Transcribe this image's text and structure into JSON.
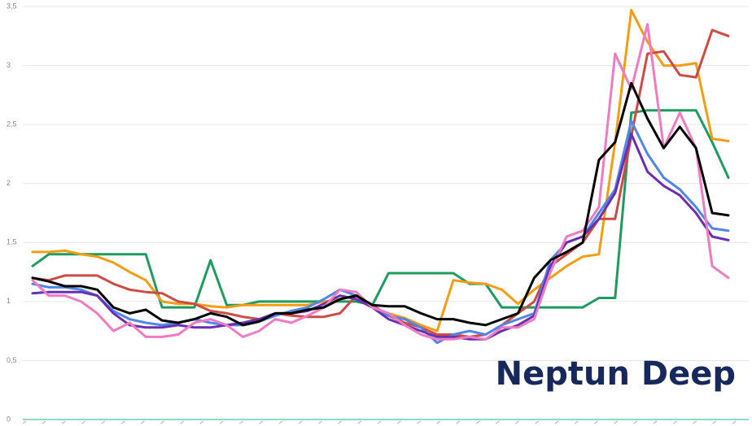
{
  "chart_data": {
    "type": "line",
    "watermark": "Neptun Deep",
    "categories": [
      null,
      null,
      null,
      null,
      null,
      null,
      null,
      null,
      null,
      null,
      null,
      null,
      null,
      null,
      null,
      null,
      null,
      null,
      null,
      null,
      null,
      null,
      null,
      null,
      null,
      null,
      null,
      null,
      null,
      null,
      null,
      null,
      null,
      null,
      null,
      null,
      null,
      null,
      null,
      null,
      null,
      null,
      null,
      null
    ],
    "ylim": [
      0,
      3.5
    ],
    "yticks": [
      0,
      {
        "value": 0.5,
        "label": "0,5"
      },
      1,
      {
        "value": 1.5,
        "label": "1,5"
      },
      2,
      {
        "value": 2.5,
        "label": "2,5"
      },
      3,
      {
        "value": 3.5,
        "label": "3,5"
      }
    ],
    "grid": true,
    "series": [
      {
        "color": "#1e9b5e",
        "values": [
          1.3,
          1.4,
          1.4,
          1.4,
          1.4,
          1.4,
          1.4,
          1.4,
          0.95,
          0.95,
          0.95,
          1.35,
          0.97,
          0.97,
          1.0,
          1,
          1,
          1,
          1,
          1,
          1,
          0.97,
          1.24,
          1.24,
          1.24,
          1.24,
          1.24,
          1.15,
          1.15,
          0.95,
          0.95,
          0.95,
          0.95,
          0.95,
          0.95,
          1.03,
          1.03,
          2.6,
          2.62,
          2.62,
          2.62,
          2.62,
          2.35,
          2.05
        ]
      },
      {
        "color": "#f29d14",
        "values": [
          1.42,
          1.42,
          1.43,
          1.4,
          1.38,
          1.33,
          1.25,
          1.18,
          1.0,
          0.98,
          0.98,
          0.96,
          0.95,
          0.97,
          0.97,
          0.97,
          0.97,
          0.97,
          1.0,
          1.02,
          1.05,
          0.95,
          0.9,
          0.86,
          0.8,
          0.75,
          1.18,
          1.16,
          1.15,
          1.1,
          0.98,
          1.1,
          1.2,
          1.3,
          1.38,
          1.4,
          2.35,
          3.47,
          3.2,
          3.0,
          3.0,
          3.02,
          2.38,
          2.36
        ]
      },
      {
        "color": "#cc4b45",
        "values": [
          1.2,
          1.18,
          1.22,
          1.22,
          1.22,
          1.15,
          1.1,
          1.08,
          1.07,
          1.0,
          0.98,
          0.92,
          0.9,
          0.87,
          0.85,
          0.9,
          0.88,
          0.87,
          0.87,
          0.9,
          1.05,
          0.97,
          0.88,
          0.82,
          0.78,
          0.72,
          0.72,
          0.7,
          0.72,
          0.8,
          0.9,
          1.0,
          1.3,
          1.4,
          1.5,
          1.7,
          1.7,
          2.4,
          3.1,
          3.12,
          2.92,
          2.9,
          3.3,
          3.25
        ]
      },
      {
        "color": "#4f86e8",
        "values": [
          1.15,
          1.12,
          1.12,
          1.1,
          1.05,
          0.92,
          0.85,
          0.82,
          0.8,
          0.82,
          0.85,
          0.82,
          0.8,
          0.8,
          0.83,
          0.88,
          0.92,
          0.95,
          1.02,
          1.1,
          1.05,
          0.95,
          0.88,
          0.85,
          0.78,
          0.65,
          0.72,
          0.75,
          0.72,
          0.8,
          0.85,
          0.9,
          1.35,
          1.5,
          1.55,
          1.75,
          1.95,
          2.53,
          2.25,
          2.05,
          1.95,
          1.8,
          1.62,
          1.6
        ]
      },
      {
        "color": "#6a2fb0",
        "values": [
          1.07,
          1.08,
          1.08,
          1.08,
          1.05,
          0.9,
          0.8,
          0.78,
          0.78,
          0.8,
          0.78,
          0.78,
          0.8,
          0.82,
          0.85,
          0.9,
          0.9,
          0.92,
          0.98,
          1.05,
          1.02,
          0.95,
          0.85,
          0.8,
          0.75,
          0.7,
          0.7,
          0.68,
          0.68,
          0.75,
          0.8,
          0.88,
          1.3,
          1.5,
          1.55,
          1.7,
          1.92,
          2.42,
          2.1,
          1.98,
          1.9,
          1.75,
          1.55,
          1.52
        ]
      },
      {
        "color": "#ef7bc3",
        "values": [
          1.18,
          1.05,
          1.05,
          1.0,
          0.9,
          0.75,
          0.82,
          0.7,
          0.7,
          0.72,
          0.82,
          0.85,
          0.8,
          0.7,
          0.75,
          0.85,
          0.82,
          0.88,
          0.95,
          1.1,
          1.08,
          0.95,
          0.9,
          0.8,
          0.72,
          0.68,
          0.68,
          0.7,
          0.68,
          0.78,
          0.78,
          0.85,
          1.25,
          1.55,
          1.6,
          1.8,
          3.1,
          2.8,
          3.35,
          2.3,
          2.6,
          2.3,
          1.3,
          1.2
        ]
      },
      {
        "color": "#000000",
        "values": [
          1.2,
          1.17,
          1.13,
          1.13,
          1.1,
          0.95,
          0.9,
          0.93,
          0.84,
          0.82,
          0.85,
          0.9,
          0.87,
          0.8,
          0.83,
          0.9,
          0.9,
          0.93,
          0.95,
          1.02,
          1.05,
          0.97,
          0.96,
          0.96,
          0.9,
          0.85,
          0.85,
          0.82,
          0.8,
          0.85,
          0.9,
          1.2,
          1.35,
          1.42,
          1.5,
          2.2,
          2.35,
          2.85,
          2.55,
          2.3,
          2.48,
          2.3,
          1.75,
          1.73
        ]
      }
    ]
  }
}
